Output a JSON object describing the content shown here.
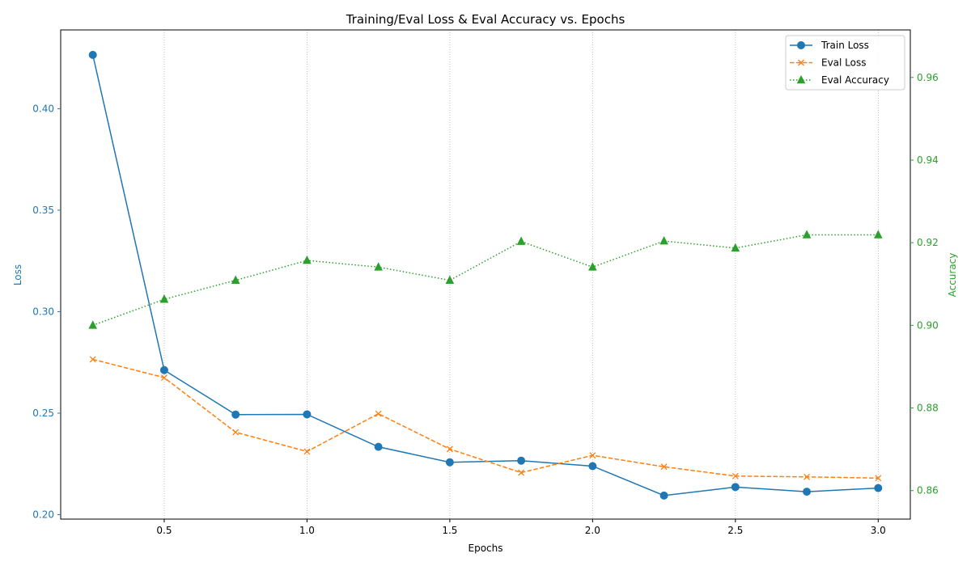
{
  "chart_data": {
    "type": "line",
    "title": "Training/Eval Loss & Eval Accuracy vs. Epochs",
    "xlabel": "Epochs",
    "ylabel_left": "Loss",
    "ylabel_right": "Accuracy",
    "x": [
      0.25,
      0.5,
      0.75,
      1.0,
      1.25,
      1.5,
      1.75,
      2.0,
      2.25,
      2.5,
      2.75,
      3.0
    ],
    "xlim": [
      0.1375,
      3.1125
    ],
    "ylim_left": [
      0.1978,
      0.4388
    ],
    "ylim_right": [
      0.8531,
      0.9715
    ],
    "xticks": [
      0.5,
      1.0,
      1.5,
      2.0,
      2.5,
      3.0
    ],
    "xtick_labels": [
      "0.5",
      "1.0",
      "1.5",
      "2.0",
      "2.5",
      "3.0"
    ],
    "yticks_left": [
      0.2,
      0.25,
      0.3,
      0.35,
      0.4
    ],
    "ytick_labels_left": [
      "0.20",
      "0.25",
      "0.30",
      "0.35",
      "0.40"
    ],
    "yticks_right": [
      0.86,
      0.88,
      0.9,
      0.92,
      0.94,
      0.96
    ],
    "ytick_labels_right": [
      "0.86",
      "0.88",
      "0.90",
      "0.92",
      "0.94",
      "0.96"
    ],
    "grid": "vertical dotted at x ticks",
    "legend_position": "top-right",
    "series": [
      {
        "name": "Train Loss",
        "axis": "left",
        "color": "#1f77b4",
        "linestyle": "solid",
        "marker": "circle",
        "values": [
          0.4265,
          0.2712,
          0.2493,
          0.2494,
          0.2334,
          0.2258,
          0.2266,
          0.2239,
          0.2094,
          0.2136,
          0.2113,
          0.2131
        ]
      },
      {
        "name": "Eval Loss",
        "axis": "left",
        "color": "#ff7f0e",
        "linestyle": "dashed",
        "marker": "x",
        "values": [
          0.2765,
          0.2675,
          0.2406,
          0.2311,
          0.2497,
          0.2323,
          0.2207,
          0.2292,
          0.2236,
          0.219,
          0.2186,
          0.218
        ]
      },
      {
        "name": "Eval Accuracy",
        "axis": "right",
        "color": "#2ca02c",
        "linestyle": "dotted",
        "marker": "triangle",
        "values": [
          0.9,
          0.9063,
          0.9109,
          0.9157,
          0.9141,
          0.9109,
          0.9203,
          0.9141,
          0.9204,
          0.9187,
          0.9219,
          0.9219
        ]
      }
    ]
  }
}
